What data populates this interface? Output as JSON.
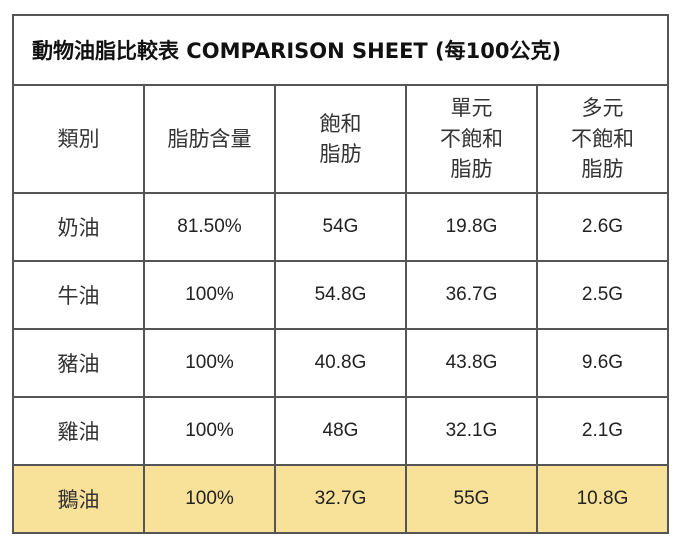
{
  "title": "動物油脂比較表 COMPARISON SHEET (每100公克)",
  "colors": {
    "border": "#555555",
    "highlight": "#f8e199"
  },
  "headers": [
    "類別",
    "脂肪含量",
    "飽和\n脂肪",
    "單元\n不飽和\n脂肪",
    "多元\n不飽和\n脂肪"
  ],
  "rows": [
    [
      "奶油",
      "81.50%",
      "54G",
      "19.8G",
      "2.6G"
    ],
    [
      "牛油",
      "100%",
      "54.8G",
      "36.7G",
      "2.5G"
    ],
    [
      "豬油",
      "100%",
      "40.8G",
      "43.8G",
      "9.6G"
    ],
    [
      "雞油",
      "100%",
      "48G",
      "32.1G",
      "2.1G"
    ],
    [
      "鵝油",
      "100%",
      "32.7G",
      "55G",
      "10.8G"
    ]
  ],
  "highlighted_row": "鵝油"
}
